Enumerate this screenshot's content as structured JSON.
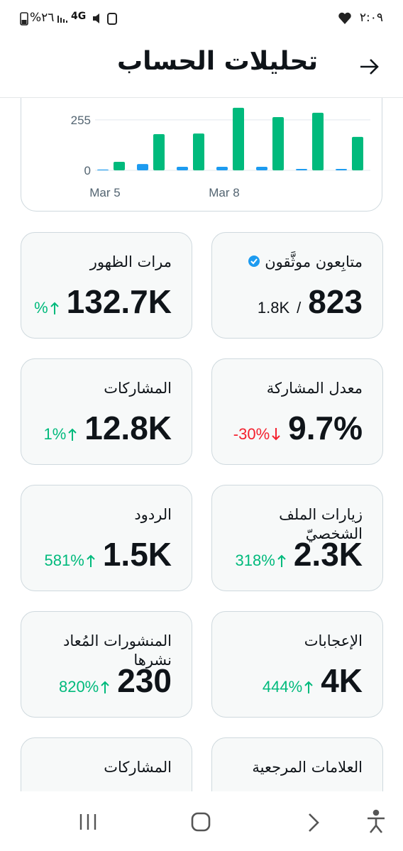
{
  "status_bar": {
    "time": "٢:٠٩",
    "battery": "%٢٦",
    "network": "4G"
  },
  "header": {
    "title": "تحليلات الحساب"
  },
  "chart": {
    "type": "bar",
    "categories": [
      "Mar 5",
      null,
      null,
      "Mar 8",
      null,
      null,
      null
    ],
    "series": [
      {
        "color": "#1d9bf0",
        "values": [
          4,
          32,
          18,
          18,
          18,
          7,
          7
        ]
      },
      {
        "color": "#00ba7c",
        "values": [
          43,
          183,
          186,
          316,
          269,
          291,
          169
        ]
      }
    ],
    "ylim": [
      0,
      330
    ],
    "yticks": [
      0,
      255
    ],
    "grid": true
  },
  "cards": [
    {
      "label": "متابِعون موثَّقون",
      "value": "823",
      "separator": "/",
      "total": "1.8K",
      "verified": true
    },
    {
      "label": "مرات الظهور",
      "value": "132.7K",
      "change": "%",
      "trend": "up"
    },
    {
      "label": "معدل المشاركة",
      "value": "9.7%",
      "change": "-30%",
      "trend": "down"
    },
    {
      "label": "المشاركات",
      "value": "12.8K",
      "change": "1%",
      "trend": "up"
    },
    {
      "label": "زيارات الملف الشخصيّ",
      "value": "2.3K",
      "change": "318%",
      "trend": "up"
    },
    {
      "label": "الردود",
      "value": "1.5K",
      "change": "581%",
      "trend": "up"
    },
    {
      "label": "الإعجابات",
      "value": "4K",
      "change": "444%",
      "trend": "up"
    },
    {
      "label": "المنشورات المُعاد نشرها",
      "value": "230",
      "change": "820%",
      "trend": "up"
    },
    {
      "label": "العلامات المرجعية"
    },
    {
      "label": "المشاركات"
    }
  ]
}
